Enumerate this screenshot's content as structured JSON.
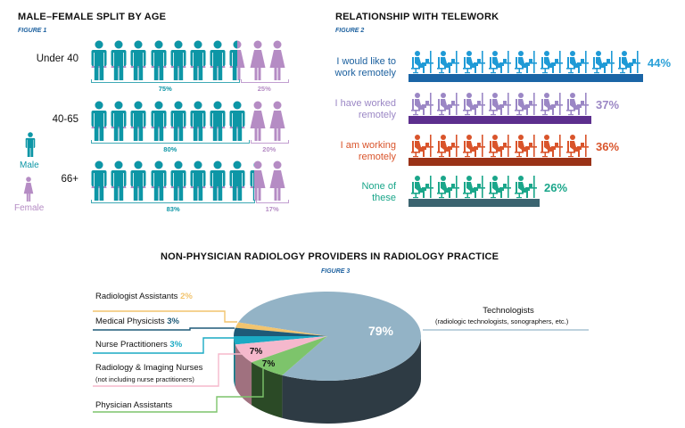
{
  "figure1": {
    "title": "MALE–FEMALE SPLIT BY AGE",
    "figure_label": "FIGURE 1",
    "legend": {
      "male": "Male",
      "female": "Female"
    },
    "colors": {
      "male": "#0d96a6",
      "female": "#b58cc4",
      "male_line": "#3fa9b5",
      "female_line": "#c29fd0"
    }
  },
  "figure2": {
    "title": "RELATIONSHIP WITH TELEWORK",
    "figure_label": "FIGURE 2"
  },
  "figure3": {
    "title": "NON-PHYSICIAN RADIOLOGY PROVIDERS IN RADIOLOGY PRACTICE",
    "figure_label": "FIGURE 3"
  },
  "chart_data": [
    {
      "type": "bar",
      "title": "MALE–FEMALE SPLIT BY AGE",
      "categories": [
        "Under 40",
        "40-65",
        "66+"
      ],
      "series": [
        {
          "name": "Male",
          "values": [
            75,
            80,
            83
          ],
          "labels": [
            "75%",
            "80%",
            "83%"
          ]
        },
        {
          "name": "Female",
          "values": [
            25,
            20,
            17
          ],
          "labels": [
            "25%",
            "20%",
            "17%"
          ]
        }
      ],
      "unit": "%"
    },
    {
      "type": "bar",
      "title": "RELATIONSHIP WITH TELEWORK",
      "categories": [
        {
          "line1": "I would like to",
          "line2": "work remotely",
          "value": 44,
          "label": "44%",
          "icon_color": "#1f9ad6",
          "bar_color": "#1a65a6",
          "text_color": "#1a5f9e",
          "pct_color": "#2aa0d8"
        },
        {
          "line1": "I have worked",
          "line2": "remotely",
          "value": 37,
          "label": "37%",
          "icon_color": "#9b87c5",
          "bar_color": "#5d2f8e",
          "text_color": "#9b87c5",
          "pct_color": "#9b87c5"
        },
        {
          "line1": "I am working",
          "line2": "remotely",
          "value": 36,
          "label": "36%",
          "icon_color": "#d9542b",
          "bar_color": "#9a3217",
          "text_color": "#d9542b",
          "pct_color": "#d9542b"
        },
        {
          "line1": "None of",
          "line2": "these",
          "value": 26,
          "label": "26%",
          "icon_color": "#1aa68a",
          "bar_color": "#3b6470",
          "text_color": "#1aa68a",
          "pct_color": "#1aa68a"
        }
      ],
      "unit": "%"
    },
    {
      "type": "pie",
      "title": "NON-PHYSICIAN RADIOLOGY PROVIDERS IN RADIOLOGY PRACTICE",
      "slices": [
        {
          "name": "Technologists",
          "sub": "(radiologic technologists, sonographers, etc.)",
          "value": 79,
          "label": "79%",
          "color": "#93b3c6",
          "side": "#2e3b44"
        },
        {
          "name": "Radiologist Assistants",
          "value": 2,
          "label": "2%",
          "color": "#f2c46e",
          "side": "#8a6e35"
        },
        {
          "name": "Medical Physicists",
          "value": 3,
          "label": "3%",
          "color": "#1e5a78",
          "side": "#173f52"
        },
        {
          "name": "Nurse Practitioners",
          "value": 3,
          "label": "3%",
          "color": "#1aaac4",
          "side": "#117585"
        },
        {
          "name": "Radiology & Imaging Nurses",
          "sub": "(not including nurse practitioners)",
          "value": 7,
          "label": "7%",
          "color": "#f5b8cc",
          "side": "#a0717f"
        },
        {
          "name": "Physician Assistants",
          "value": 7,
          "label": "7%",
          "color": "#7dc46b",
          "side": "#2b4a26"
        }
      ],
      "unit": "%"
    }
  ]
}
